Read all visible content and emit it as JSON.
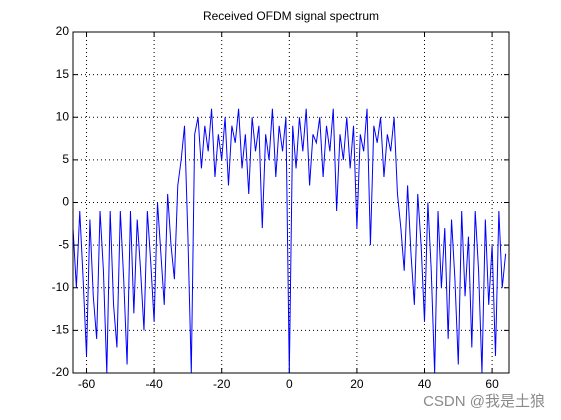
{
  "chart_data": {
    "type": "line",
    "title": "Received OFDM signal spectrum",
    "x": [
      -64,
      -63,
      -62,
      -61,
      -60,
      -59,
      -58,
      -57,
      -56,
      -55,
      -54,
      -53,
      -52,
      -51,
      -50,
      -49,
      -48,
      -47,
      -46,
      -45,
      -44,
      -43,
      -42,
      -41,
      -40,
      -39,
      -38,
      -37,
      -36,
      -35,
      -34,
      -33,
      -32,
      -31,
      -30,
      -29,
      -28,
      -27,
      -26,
      -25,
      -24,
      -23,
      -22,
      -21,
      -20,
      -19,
      -18,
      -17,
      -16,
      -15,
      -14,
      -13,
      -12,
      -11,
      -10,
      -9,
      -8,
      -7,
      -6,
      -5,
      -4,
      -3,
      -2,
      -1,
      0,
      1,
      2,
      3,
      4,
      5,
      6,
      7,
      8,
      9,
      10,
      11,
      12,
      13,
      14,
      15,
      16,
      17,
      18,
      19,
      20,
      21,
      22,
      23,
      24,
      25,
      26,
      27,
      28,
      29,
      30,
      31,
      32,
      33,
      34,
      35,
      36,
      37,
      38,
      39,
      40,
      41,
      42,
      43,
      44,
      45,
      46,
      47,
      48,
      49,
      50,
      51,
      52,
      53,
      54,
      55,
      56,
      57,
      58,
      59,
      60,
      61,
      62,
      63,
      64
    ],
    "values": [
      -3,
      -10,
      -1,
      -9,
      -18,
      -2,
      -11,
      -16,
      -1,
      -8,
      -20,
      -1,
      -12,
      -17,
      -1,
      -9,
      -19,
      -1,
      -13,
      -2,
      -8,
      -15,
      -1,
      -7,
      -14,
      0,
      -6,
      -12,
      1,
      -5,
      -9,
      2,
      5,
      9,
      -4,
      -20,
      8,
      10,
      4,
      9,
      6,
      11,
      3,
      8,
      5,
      10,
      2,
      9,
      7,
      11,
      4,
      8,
      1,
      10,
      6,
      9,
      -3,
      8,
      5,
      11,
      3,
      9,
      6,
      10,
      -20,
      9,
      4,
      10,
      6,
      11,
      2,
      8,
      7,
      10,
      3,
      9,
      6,
      11,
      -1,
      8,
      5,
      10,
      4,
      9,
      -3,
      8,
      6,
      11,
      -5,
      9,
      7,
      10,
      3,
      8,
      6,
      10,
      1,
      -3,
      -8,
      2,
      -6,
      -12,
      1,
      -5,
      -14,
      0,
      -8,
      -20,
      -1,
      -10,
      -3,
      -16,
      -2,
      -9,
      -19,
      -1,
      -11,
      -4,
      -17,
      -1,
      -8,
      -20,
      -2,
      -12,
      -5,
      -18,
      -1,
      -10,
      -6
    ],
    "color": "#0000ff",
    "xlim": [
      -64,
      65
    ],
    "xticks": [
      -60,
      -40,
      -20,
      0,
      20,
      40,
      60
    ],
    "ylim": [
      -20,
      20
    ],
    "yticks": [
      -20,
      -15,
      -10,
      -5,
      0,
      5,
      10,
      15,
      20
    ],
    "grid": true,
    "watermark": "CSDN @我是土狼"
  }
}
